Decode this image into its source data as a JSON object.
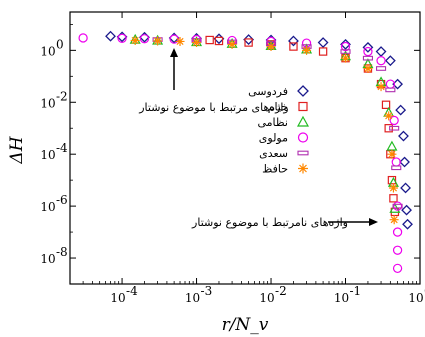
{
  "chart_data": {
    "type": "scatter",
    "title": "",
    "xlabel": "r/N_v",
    "ylabel": "ΔH",
    "x_scale": "log",
    "y_scale": "log",
    "xlim": [
      2e-05,
      1
    ],
    "ylim": [
      1e-09,
      30
    ],
    "x_ticks": [
      {
        "value": 0.0001,
        "label": "10",
        "exp": "-4"
      },
      {
        "value": 0.001,
        "label": "10",
        "exp": "-3"
      },
      {
        "value": 0.01,
        "label": "10",
        "exp": "-2"
      },
      {
        "value": 0.1,
        "label": "10",
        "exp": "-1"
      },
      {
        "value": 1,
        "label": "10",
        "exp": "0"
      }
    ],
    "y_ticks": [
      {
        "value": 1,
        "label": "10",
        "exp": "0"
      },
      {
        "value": 0.01,
        "label": "10",
        "exp": "-2"
      },
      {
        "value": 0.0001,
        "label": "10",
        "exp": "-4"
      },
      {
        "value": 1e-06,
        "label": "10",
        "exp": "-6"
      },
      {
        "value": 1e-08,
        "label": "10",
        "exp": "-8"
      }
    ],
    "legend_position": "right",
    "series": [
      {
        "name": "فردوسی",
        "marker": "diamond",
        "color": "#1a1a8c",
        "x": [
          7e-05,
          0.0001,
          0.0002,
          0.0005,
          0.001,
          0.002,
          0.005,
          0.01,
          0.02,
          0.05,
          0.1,
          0.2,
          0.3,
          0.4,
          0.5,
          0.55,
          0.6,
          0.62,
          0.64,
          0.66,
          0.68
        ],
        "y": [
          3.5,
          3.3,
          3.2,
          3.0,
          2.9,
          2.8,
          2.6,
          2.5,
          2.3,
          2.0,
          1.7,
          1.3,
          0.9,
          0.4,
          0.05,
          0.005,
          0.0005,
          5e-05,
          5e-06,
          7e-07,
          2e-07
        ]
      },
      {
        "name": "خیام",
        "marker": "square",
        "color": "#e02020",
        "x": [
          0.0015,
          0.002,
          0.005,
          0.01,
          0.02,
          0.05,
          0.1,
          0.2,
          0.3,
          0.35,
          0.38,
          0.4,
          0.42,
          0.44,
          0.46
        ],
        "y": [
          2.5,
          2.3,
          2.0,
          1.7,
          1.4,
          0.9,
          0.5,
          0.2,
          0.05,
          0.008,
          0.001,
          0.0001,
          1e-05,
          2e-06,
          6e-07
        ]
      },
      {
        "name": "نظامی",
        "marker": "triangle",
        "color": "#22bb22",
        "x": [
          0.00015,
          0.0003,
          0.001,
          0.003,
          0.01,
          0.03,
          0.1,
          0.2,
          0.3,
          0.38,
          0.42,
          0.44,
          0.46
        ],
        "y": [
          2.6,
          2.4,
          2.1,
          1.8,
          1.5,
          1.1,
          0.6,
          0.3,
          0.06,
          0.004,
          0.0002,
          8e-06,
          8e-07
        ]
      },
      {
        "name": "مولوی",
        "marker": "circle",
        "color": "#ee00ee",
        "x": [
          3e-05,
          0.0001,
          0.0002,
          0.0005,
          0.001,
          0.003,
          0.01,
          0.03,
          0.1,
          0.2,
          0.3,
          0.4,
          0.45,
          0.48,
          0.5,
          0.5,
          0.5,
          0.5
        ],
        "y": [
          3.0,
          2.9,
          2.8,
          2.7,
          2.6,
          2.4,
          2.2,
          1.9,
          1.4,
          0.9,
          0.4,
          0.05,
          0.002,
          5e-05,
          1e-06,
          1e-07,
          2e-08,
          4e-09
        ]
      },
      {
        "name": "سعدی",
        "marker": "bar",
        "color": "#b02fb0",
        "x": [
          0.0003,
          0.001,
          0.003,
          0.01,
          0.03,
          0.1,
          0.2,
          0.3,
          0.4,
          0.45,
          0.48,
          0.5
        ],
        "y": [
          2.6,
          2.4,
          2.1,
          1.8,
          1.4,
          0.9,
          0.5,
          0.2,
          0.03,
          0.001,
          3e-05,
          1e-06
        ]
      },
      {
        "name": "حافظ",
        "marker": "asterisk",
        "color": "#ff8800",
        "x": [
          0.00015,
          0.0003,
          0.0006,
          0.001,
          0.003,
          0.01,
          0.03,
          0.1,
          0.2,
          0.3,
          0.38,
          0.42,
          0.44,
          0.45
        ],
        "y": [
          2.4,
          2.3,
          2.2,
          2.0,
          1.7,
          1.4,
          1.0,
          0.5,
          0.2,
          0.04,
          0.003,
          0.0001,
          5e-06,
          3e-07
        ]
      }
    ],
    "annotations": [
      {
        "text": "واژه‌های مرتبط با موضوع نوشتار",
        "arrow": "up"
      },
      {
        "text": "واژه‌های نامرتبط با موضوع نوشتار",
        "arrow": "right"
      }
    ]
  }
}
